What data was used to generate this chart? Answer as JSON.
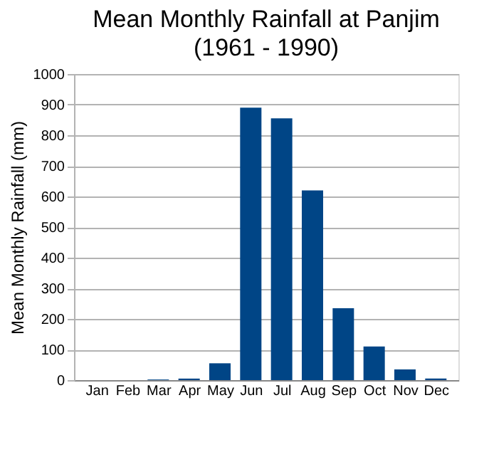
{
  "chart_data": {
    "type": "bar",
    "title": "Mean Monthly Rainfall at Panjim",
    "subtitle": "(1961 - 1990)",
    "ylabel": "Mean Monthly Rainfall (mm)",
    "categories": [
      "Jan",
      "Feb",
      "Mar",
      "Apr",
      "May",
      "Jun",
      "Jul",
      "Aug",
      "Sep",
      "Oct",
      "Nov",
      "Dec"
    ],
    "values": [
      0,
      0,
      2,
      5,
      55,
      890,
      855,
      620,
      235,
      110,
      35,
      5
    ],
    "color": "#004586",
    "ylim": [
      0,
      1000
    ],
    "yticks": [
      0,
      100,
      200,
      300,
      400,
      500,
      600,
      700,
      800,
      900,
      1000
    ],
    "grid": "y"
  }
}
